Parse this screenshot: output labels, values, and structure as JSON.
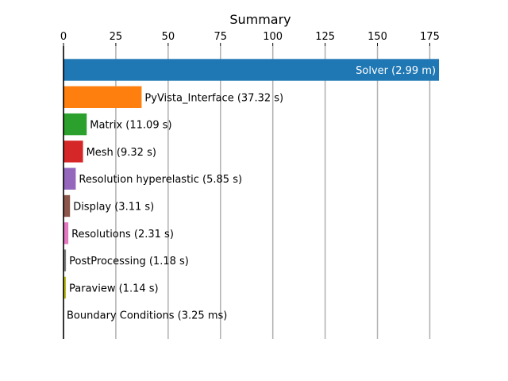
{
  "chart_data": {
    "type": "bar",
    "orientation": "horizontal",
    "title": "Summary",
    "xlabel": "",
    "ylabel": "",
    "xlim": [
      0,
      179
    ],
    "x_ticks": [
      0,
      25,
      50,
      75,
      100,
      125,
      150,
      175
    ],
    "x_axis_position": "top",
    "grid": "vertical",
    "categories": [
      "Solver (2.99 m)",
      "PyVista_Interface (37.32 s)",
      "Matrix (11.09 s)",
      "Mesh (9.32 s)",
      "Resolution hyperelastic (5.85 s)",
      "Display (3.11 s)",
      "Resolutions (2.31 s)",
      "PostProcessing (1.18 s)",
      "Paraview (1.14 s)",
      "Boundary Conditions (3.25 ms)"
    ],
    "values": [
      179.4,
      37.32,
      11.09,
      9.32,
      5.85,
      3.11,
      2.31,
      1.18,
      1.14,
      0.00325
    ],
    "colors": [
      "#1f77b4",
      "#ff7f0e",
      "#2ca02c",
      "#d62728",
      "#9467bd",
      "#8c564b",
      "#e377c2",
      "#7f7f7f",
      "#bcbd22",
      "#17becf"
    ],
    "label_inside": [
      true,
      false,
      false,
      false,
      false,
      false,
      false,
      false,
      false,
      false
    ]
  }
}
